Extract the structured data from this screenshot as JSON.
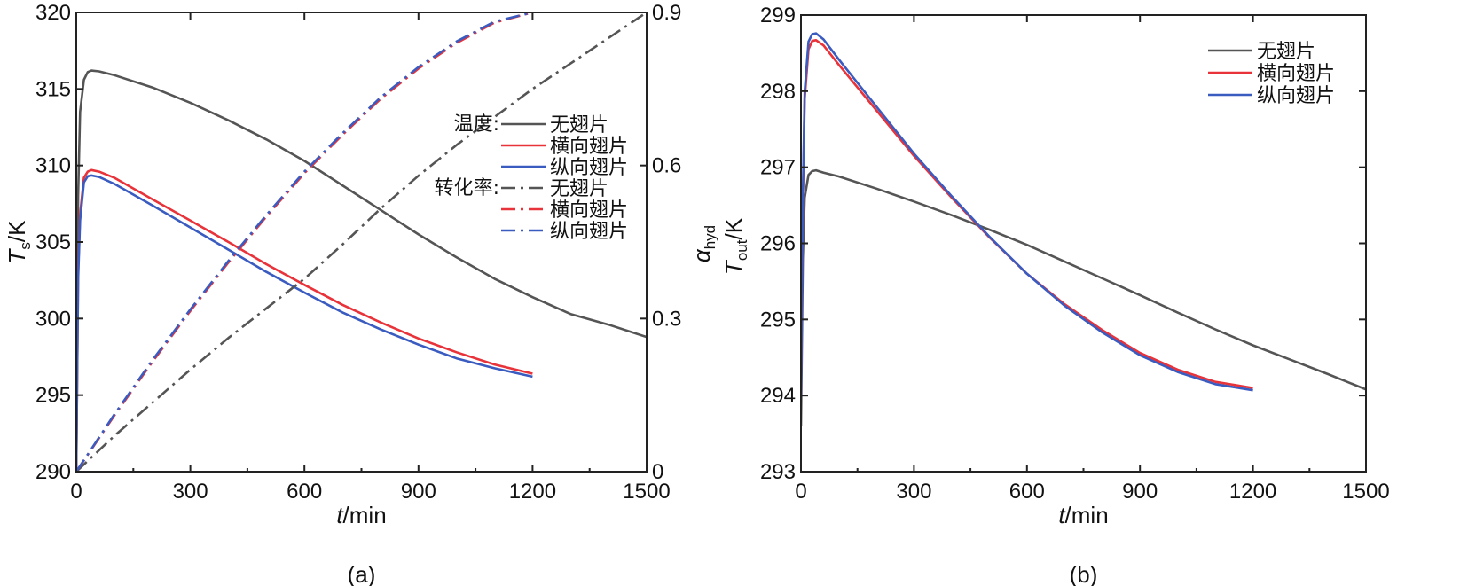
{
  "chart_data": [
    {
      "panel": "a",
      "type": "line",
      "caption": "(a)",
      "xlabel": {
        "var": "t",
        "unit": "/min"
      },
      "ylabel_left": {
        "var": "T",
        "sub": "s",
        "unit": "/K"
      },
      "ylabel_right": {
        "var": "α",
        "sub": "hyd"
      },
      "xlim": [
        0,
        1500
      ],
      "ylim_left": [
        290,
        320
      ],
      "ylim_right": [
        0,
        0.9
      ],
      "x_ticks": [
        "0",
        "300",
        "600",
        "900",
        "1200",
        "1500"
      ],
      "y_ticks_left": [
        "290",
        "295",
        "300",
        "305",
        "310",
        "315",
        "320"
      ],
      "y_ticks_right": [
        "0",
        "0.3",
        "0.6",
        "0.9"
      ],
      "legend": {
        "groups": [
          {
            "title": "温度:",
            "entries": [
              "无翅片",
              "横向翅片",
              "纵向翅片"
            ],
            "style": "solid"
          },
          {
            "title": "转化率:",
            "entries": [
              "无翅片",
              "横向翅片",
              "纵向翅片"
            ],
            "style": "dashdot"
          }
        ]
      },
      "series": [
        {
          "name": "温度-无翅片",
          "axis": "left",
          "color": "#555555",
          "style": "solid",
          "x": [
            0,
            5,
            10,
            20,
            30,
            40,
            60,
            100,
            200,
            300,
            400,
            500,
            600,
            700,
            800,
            900,
            1000,
            1100,
            1200,
            1300,
            1400,
            1500
          ],
          "y": [
            290,
            308,
            313.5,
            315.6,
            316.1,
            316.2,
            316.15,
            315.9,
            315.1,
            314.1,
            312.95,
            311.7,
            310.3,
            308.7,
            307.1,
            305.5,
            304.0,
            302.6,
            301.4,
            300.3,
            299.6,
            298.8
          ]
        },
        {
          "name": "温度-横向翅片",
          "axis": "left",
          "color": "#e8333a",
          "style": "solid",
          "x": [
            0,
            5,
            10,
            20,
            30,
            40,
            60,
            100,
            200,
            300,
            400,
            500,
            600,
            700,
            800,
            900,
            1000,
            1100,
            1200
          ],
          "y": [
            290,
            303,
            306.8,
            309.2,
            309.6,
            309.7,
            309.6,
            309.2,
            307.8,
            306.4,
            305.0,
            303.55,
            302.2,
            300.9,
            299.75,
            298.7,
            297.8,
            297.0,
            296.4
          ]
        },
        {
          "name": "温度-纵向翅片",
          "axis": "left",
          "color": "#3a5bbf",
          "style": "solid",
          "x": [
            0,
            5,
            10,
            20,
            30,
            40,
            60,
            100,
            200,
            300,
            400,
            500,
            600,
            700,
            800,
            900,
            1000,
            1100,
            1200
          ],
          "y": [
            290,
            302.6,
            306.4,
            308.9,
            309.3,
            309.35,
            309.25,
            308.8,
            307.4,
            305.95,
            304.5,
            303.05,
            301.7,
            300.4,
            299.3,
            298.3,
            297.4,
            296.75,
            296.2
          ]
        },
        {
          "name": "转化率-无翅片",
          "axis": "right",
          "color": "#555555",
          "style": "dashdot",
          "x": [
            0,
            100,
            200,
            300,
            400,
            500,
            600,
            700,
            800,
            900,
            1000,
            1100,
            1200,
            1300,
            1400,
            1500
          ],
          "y": [
            0,
            0.07,
            0.135,
            0.2,
            0.262,
            0.32,
            0.378,
            0.445,
            0.515,
            0.58,
            0.64,
            0.695,
            0.75,
            0.8,
            0.85,
            0.9
          ]
        },
        {
          "name": "转化率-横向翅片",
          "axis": "right",
          "color": "#e8333a",
          "style": "dashdot",
          "x": [
            0,
            100,
            200,
            300,
            400,
            500,
            600,
            700,
            800,
            900,
            1000,
            1100,
            1200
          ],
          "y": [
            0,
            0.11,
            0.215,
            0.315,
            0.41,
            0.5,
            0.585,
            0.66,
            0.73,
            0.79,
            0.84,
            0.88,
            0.9
          ]
        },
        {
          "name": "转化率-纵向翅片",
          "axis": "right",
          "color": "#3a5bbf",
          "style": "dashdot",
          "x": [
            0,
            100,
            200,
            300,
            400,
            500,
            600,
            700,
            800,
            900,
            1000,
            1100,
            1200
          ],
          "y": [
            0,
            0.112,
            0.218,
            0.318,
            0.413,
            0.503,
            0.588,
            0.663,
            0.733,
            0.793,
            0.843,
            0.882,
            0.9
          ]
        }
      ]
    },
    {
      "panel": "b",
      "type": "line",
      "caption": "(b)",
      "xlabel": {
        "var": "t",
        "unit": "/min"
      },
      "ylabel": {
        "var": "T",
        "sub": "out",
        "unit": "/K"
      },
      "xlim": [
        0,
        1500
      ],
      "ylim": [
        293,
        299
      ],
      "x_ticks": [
        "0",
        "300",
        "600",
        "900",
        "1200",
        "1500"
      ],
      "y_ticks": [
        "293",
        "294",
        "295",
        "296",
        "297",
        "298",
        "299"
      ],
      "legend": {
        "entries": [
          "无翅片",
          "横向翅片",
          "纵向翅片"
        ],
        "placement": "top-right"
      },
      "series": [
        {
          "name": "无翅片",
          "color": "#555555",
          "style": "solid",
          "x": [
            0,
            5,
            10,
            20,
            30,
            40,
            60,
            100,
            200,
            300,
            400,
            500,
            600,
            700,
            800,
            900,
            1000,
            1100,
            1200,
            1300,
            1400,
            1500
          ],
          "y": [
            293.6,
            295.8,
            296.6,
            296.9,
            296.95,
            296.96,
            296.93,
            296.88,
            296.72,
            296.55,
            296.37,
            296.18,
            295.98,
            295.76,
            295.54,
            295.32,
            295.09,
            294.87,
            294.66,
            294.47,
            294.28,
            294.08
          ]
        },
        {
          "name": "横向翅片",
          "color": "#e8333a",
          "style": "solid",
          "x": [
            0,
            5,
            10,
            20,
            30,
            40,
            60,
            100,
            200,
            300,
            400,
            500,
            600,
            700,
            800,
            900,
            1000,
            1100,
            1200
          ],
          "y": [
            294.0,
            296.5,
            297.9,
            298.55,
            298.66,
            298.67,
            298.6,
            298.35,
            297.75,
            297.15,
            296.6,
            296.08,
            295.6,
            295.2,
            294.86,
            294.56,
            294.34,
            294.18,
            294.1
          ]
        },
        {
          "name": "纵向翅片",
          "color": "#3a5bbf",
          "style": "solid",
          "x": [
            0,
            5,
            10,
            20,
            30,
            40,
            60,
            100,
            200,
            300,
            400,
            500,
            600,
            700,
            800,
            900,
            1000,
            1100,
            1200
          ],
          "y": [
            294.0,
            296.6,
            298.0,
            298.65,
            298.75,
            298.76,
            298.68,
            298.42,
            297.8,
            297.18,
            296.62,
            296.09,
            295.6,
            295.18,
            294.83,
            294.53,
            294.31,
            294.15,
            294.07
          ]
        }
      ]
    }
  ]
}
